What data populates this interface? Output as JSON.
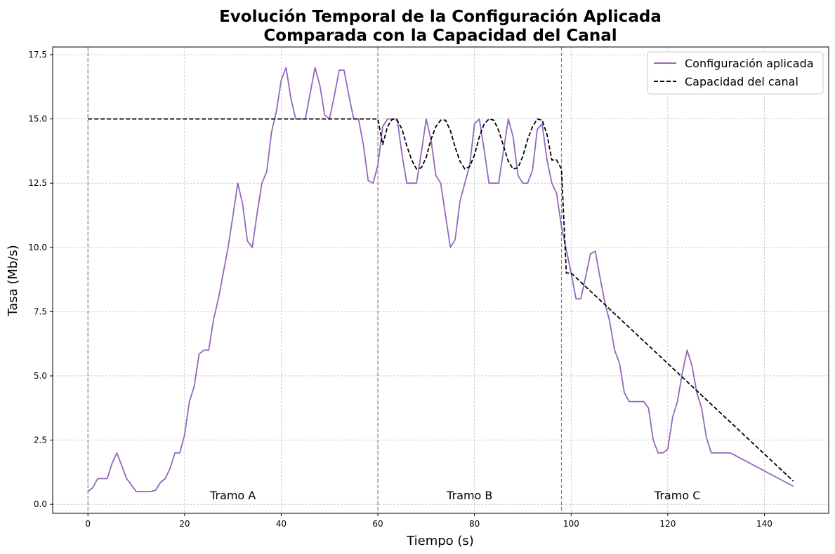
{
  "chart_data": {
    "type": "line",
    "title_line1": "Evolución Temporal de la Configuración Aplicada",
    "title_line2": "Comparada con la Capacidad del Canal",
    "xlabel": "Tiempo (s)",
    "ylabel": "Tasa (Mb/s)",
    "xlim": [
      -7.3,
      153.3
    ],
    "ylim": [
      -0.35,
      17.8
    ],
    "x_ticks": [
      0,
      20,
      40,
      60,
      80,
      100,
      120,
      140
    ],
    "y_ticks": [
      0.0,
      2.5,
      5.0,
      7.5,
      10.0,
      12.5,
      15.0,
      17.5
    ],
    "x_tick_labels": [
      "0",
      "20",
      "40",
      "60",
      "80",
      "100",
      "120",
      "140"
    ],
    "y_tick_labels": [
      "0.0",
      "2.5",
      "5.0",
      "7.5",
      "10.0",
      "12.5",
      "15.0",
      "17.5"
    ],
    "grid": true,
    "legend_position": "top-right",
    "vertical_lines": [
      0,
      60,
      98
    ],
    "segment_labels": [
      {
        "text": "Tramo A",
        "x": 30,
        "y": 0.2
      },
      {
        "text": "Tramo B",
        "x": 79,
        "y": 0.2
      },
      {
        "text": "Tramo C",
        "x": 122,
        "y": 0.2
      }
    ],
    "series": [
      {
        "name": "Configuración aplicada",
        "color": "#9467bd",
        "style": "solid",
        "x": [
          0,
          1,
          2,
          3,
          4,
          5,
          6,
          7,
          8,
          9,
          10,
          11,
          12,
          13,
          14,
          15,
          16,
          17,
          18,
          19,
          20,
          21,
          22,
          23,
          24,
          25,
          26,
          27,
          28,
          29,
          30,
          31,
          32,
          33,
          34,
          35,
          36,
          37,
          38,
          39,
          40,
          41,
          42,
          43,
          44,
          45,
          46,
          47,
          48,
          49,
          50,
          51,
          52,
          53,
          54,
          55,
          56,
          57,
          58,
          59,
          60,
          61,
          62,
          63,
          64,
          65,
          66,
          67,
          68,
          69,
          70,
          71,
          72,
          73,
          74,
          75,
          76,
          77,
          78,
          79,
          80,
          81,
          82,
          83,
          84,
          85,
          86,
          87,
          88,
          89,
          90,
          91,
          92,
          93,
          94,
          95,
          96,
          97,
          98,
          99,
          100,
          101,
          102,
          103,
          104,
          105,
          106,
          107,
          108,
          109,
          110,
          111,
          112,
          113,
          114,
          115,
          116,
          117,
          118,
          119,
          120,
          121,
          122,
          123,
          124,
          125,
          126,
          127,
          128,
          129,
          130,
          133,
          146
        ],
        "y": [
          0.5,
          0.65,
          1.0,
          1.0,
          1.0,
          1.6,
          2.0,
          1.5,
          1.0,
          0.75,
          0.5,
          0.5,
          0.5,
          0.5,
          0.55,
          0.85,
          1.0,
          1.4,
          2.0,
          2.0,
          2.7,
          4.0,
          4.6,
          5.85,
          6.0,
          6.0,
          7.2,
          8.0,
          9.0,
          10.0,
          11.2,
          12.5,
          11.7,
          10.25,
          10.0,
          11.3,
          12.5,
          12.95,
          14.5,
          15.3,
          16.5,
          17.0,
          15.8,
          15.0,
          15.0,
          15.0,
          16.0,
          17.0,
          16.3,
          15.15,
          15.0,
          15.9,
          16.9,
          16.9,
          15.9,
          15.0,
          15.0,
          14.0,
          12.6,
          12.5,
          13.2,
          14.7,
          15.0,
          15.0,
          15.0,
          13.6,
          12.5,
          12.5,
          12.5,
          13.7,
          15.0,
          14.2,
          12.8,
          12.5,
          11.25,
          10.0,
          10.3,
          11.8,
          12.5,
          13.2,
          14.8,
          15.0,
          13.8,
          12.5,
          12.5,
          12.5,
          13.75,
          15.0,
          14.3,
          12.8,
          12.5,
          12.5,
          13.0,
          14.6,
          14.8,
          13.4,
          12.5,
          12.1,
          10.8,
          9.9,
          9.0,
          8.0,
          8.0,
          8.85,
          9.75,
          9.85,
          8.8,
          7.85,
          7.1,
          6.0,
          5.5,
          4.35,
          4.0,
          4.0,
          4.0,
          4.0,
          3.75,
          2.5,
          2.0,
          2.0,
          2.15,
          3.4,
          4.0,
          5.1,
          6.0,
          5.4,
          4.35,
          3.75,
          2.6,
          2.0,
          2.0,
          2.0,
          0.7
        ]
      },
      {
        "name": "Capacidad del canal",
        "color": "#000000",
        "style": "dashed",
        "x": [
          0,
          60,
          61,
          62,
          63,
          64,
          65,
          66,
          67,
          68,
          69,
          70,
          71,
          72,
          73,
          74,
          75,
          76,
          77,
          78,
          79,
          80,
          81,
          82,
          83,
          84,
          85,
          86,
          87,
          88,
          89,
          90,
          91,
          92,
          93,
          94,
          95,
          96,
          97,
          98,
          99,
          100,
          146
        ],
        "y": [
          15.0,
          15.0,
          14.0,
          14.7,
          15.0,
          14.95,
          14.6,
          13.95,
          13.4,
          13.05,
          13.1,
          13.5,
          14.2,
          14.7,
          14.95,
          14.95,
          14.55,
          13.9,
          13.35,
          13.05,
          13.15,
          13.6,
          14.3,
          14.8,
          15.0,
          14.95,
          14.55,
          13.95,
          13.35,
          13.05,
          13.1,
          13.55,
          14.2,
          14.7,
          15.0,
          14.95,
          14.4,
          13.4,
          13.4,
          13.05,
          9.0,
          9.0,
          0.9
        ]
      }
    ]
  }
}
